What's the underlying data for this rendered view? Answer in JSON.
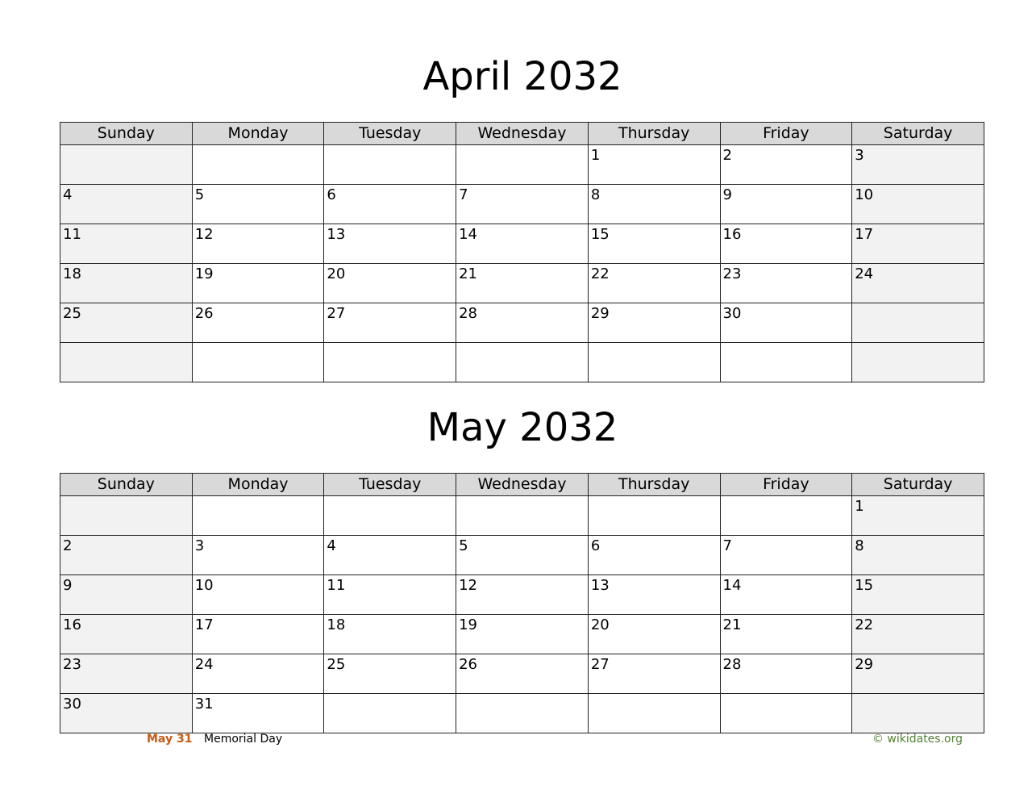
{
  "months": [
    {
      "title": "April 2032",
      "weekdays": [
        "Sunday",
        "Monday",
        "Tuesday",
        "Wednesday",
        "Thursday",
        "Friday",
        "Saturday"
      ],
      "weeks": [
        [
          "",
          "",
          "",
          "",
          "1",
          "2",
          "3"
        ],
        [
          "4",
          "5",
          "6",
          "7",
          "8",
          "9",
          "10"
        ],
        [
          "11",
          "12",
          "13",
          "14",
          "15",
          "16",
          "17"
        ],
        [
          "18",
          "19",
          "20",
          "21",
          "22",
          "23",
          "24"
        ],
        [
          "25",
          "26",
          "27",
          "28",
          "29",
          "30",
          ""
        ],
        [
          "",
          "",
          "",
          "",
          "",
          "",
          ""
        ]
      ]
    },
    {
      "title": "May 2032",
      "weekdays": [
        "Sunday",
        "Monday",
        "Tuesday",
        "Wednesday",
        "Thursday",
        "Friday",
        "Saturday"
      ],
      "weeks": [
        [
          "",
          "",
          "",
          "",
          "",
          "",
          "1"
        ],
        [
          "2",
          "3",
          "4",
          "5",
          "6",
          "7",
          "8"
        ],
        [
          "9",
          "10",
          "11",
          "12",
          "13",
          "14",
          "15"
        ],
        [
          "16",
          "17",
          "18",
          "19",
          "20",
          "21",
          "22"
        ],
        [
          "23",
          "24",
          "25",
          "26",
          "27",
          "28",
          "29"
        ],
        [
          "30",
          "31",
          "",
          "",
          "",
          "",
          ""
        ]
      ]
    }
  ],
  "holidays": [
    {
      "date": "May 31",
      "name": "Memorial Day"
    }
  ],
  "credit": "© wikidates.org",
  "colors": {
    "header_bg": "#d9d9d9",
    "weekend_bg": "#f2f2f2",
    "holiday_date": "#c55a11",
    "credit": "#538135"
  }
}
